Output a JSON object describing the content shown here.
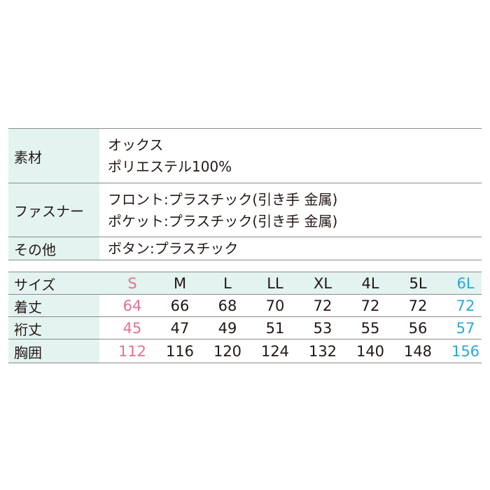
{
  "spec_table": {
    "rows": [
      {
        "label": "素材",
        "lines": [
          "オックス",
          "ポリエステル100%"
        ]
      },
      {
        "label": "ファスナー",
        "lines": [
          "フロント:プラスチック(引き手 金属)",
          "ポケット:プラスチック(引き手 金属)"
        ]
      },
      {
        "label": "その他",
        "lines": [
          "ボタン:プラスチック"
        ]
      }
    ]
  },
  "size_table": {
    "header": {
      "label": "サイズ",
      "sizes": [
        "S",
        "M",
        "L",
        "LL",
        "XL",
        "4L",
        "5L",
        "6L"
      ]
    },
    "rows": [
      {
        "label": "着丈",
        "values": [
          64,
          66,
          68,
          70,
          72,
          72,
          72,
          72
        ]
      },
      {
        "label": "裄丈",
        "values": [
          45,
          47,
          49,
          51,
          53,
          55,
          56,
          57
        ]
      },
      {
        "label": "胸囲",
        "values": [
          112,
          116,
          120,
          124,
          132,
          140,
          148,
          156
        ]
      }
    ]
  }
}
